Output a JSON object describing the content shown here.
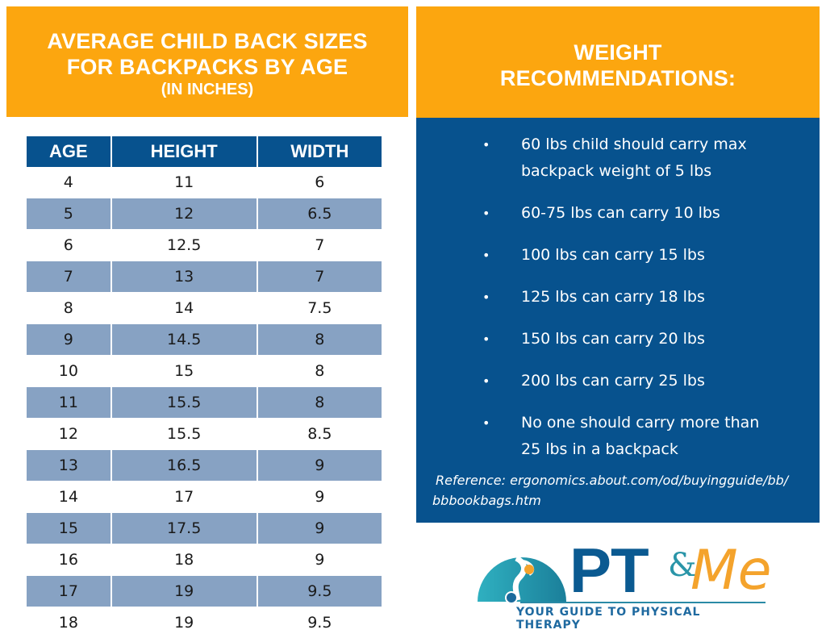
{
  "left_header": {
    "line1": "AVERAGE CHILD BACK SIZES",
    "line2": "FOR BACKPACKS BY AGE",
    "line3": "(IN INCHES)"
  },
  "table": {
    "headers": [
      "AGE",
      "HEIGHT",
      "WIDTH"
    ],
    "rows": [
      [
        "4",
        "11",
        "6"
      ],
      [
        "5",
        "12",
        "6.5"
      ],
      [
        "6",
        "12.5",
        "7"
      ],
      [
        "7",
        "13",
        "7"
      ],
      [
        "8",
        "14",
        "7.5"
      ],
      [
        "9",
        "14.5",
        "8"
      ],
      [
        "10",
        "15",
        "8"
      ],
      [
        "11",
        "15.5",
        "8"
      ],
      [
        "12",
        "15.5",
        "8.5"
      ],
      [
        "13",
        "16.5",
        "9"
      ],
      [
        "14",
        "17",
        "9"
      ],
      [
        "15",
        "17.5",
        "9"
      ],
      [
        "16",
        "18",
        "9"
      ],
      [
        "17",
        "19",
        "9.5"
      ],
      [
        "18",
        "19",
        "9.5"
      ]
    ]
  },
  "right_header": {
    "line1": "WEIGHT",
    "line2": "RECOMMENDATIONS:"
  },
  "recommendations": {
    "bullet": "•",
    "items": [
      [
        "60 lbs child should carry max",
        "backpack weight of 5 lbs"
      ],
      [
        "60-75 lbs can carry 10 lbs"
      ],
      [
        "100 lbs can carry 15 lbs"
      ],
      [
        "125 lbs can carry 18 lbs"
      ],
      [
        "150 lbs can carry 20 lbs"
      ],
      [
        "200 lbs can carry 25 lbs"
      ],
      [
        "No one should carry more than",
        "25 lbs in a backpack"
      ]
    ],
    "reference_line1": "Reference: ergonomics.about.com/od/buyingguide/bb/",
    "reference_line2": "bbbookbags.htm"
  },
  "logo": {
    "pt": "PT",
    "amp": "&",
    "me": "Me",
    "tagline": "YOUR GUIDE TO PHYSICAL THERAPY"
  },
  "colors": {
    "orange": "#fca60f",
    "navy": "#07528e",
    "row_alt": "#87a2c3",
    "logo_teal": "#2a95a8",
    "logo_orange": "#f4a32c"
  }
}
